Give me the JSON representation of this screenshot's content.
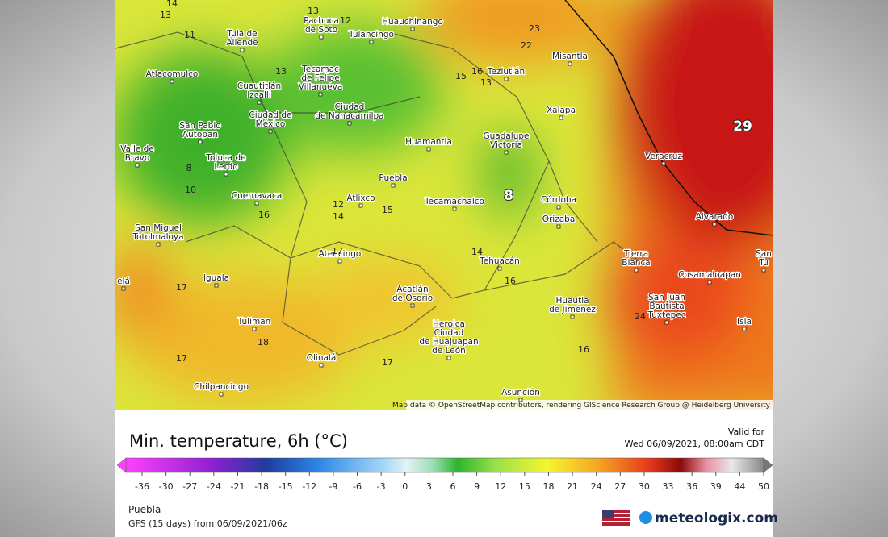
{
  "map": {
    "cities": [
      {
        "lines": [
          "Tula de",
          "Allende"
        ]
      },
      {
        "lines": [
          "Pachuca",
          "de Soto"
        ]
      },
      {
        "lines": [
          "Tulancingo"
        ]
      },
      {
        "lines": [
          "Huauchinango"
        ]
      },
      {
        "lines": [
          "Misantla"
        ]
      },
      {
        "lines": [
          "Atlacomulco"
        ]
      },
      {
        "lines": [
          "Tecamac",
          "de Felipe",
          "Villanueva"
        ]
      },
      {
        "lines": [
          "Cuautitlán",
          "Izcalli"
        ]
      },
      {
        "lines": [
          "Teziutlán"
        ]
      },
      {
        "lines": [
          "Ciudad",
          "de Nanacamilpa"
        ]
      },
      {
        "lines": [
          "Ciudad de",
          "México"
        ]
      },
      {
        "lines": [
          "Xalapa"
        ]
      },
      {
        "lines": [
          "San Pablo",
          "Autopan"
        ]
      },
      {
        "lines": [
          "Guadalupe",
          "Victoria"
        ]
      },
      {
        "lines": [
          "Huamantla"
        ]
      },
      {
        "lines": [
          "Veracruz"
        ]
      },
      {
        "lines": [
          "Valle de",
          "Bravo"
        ]
      },
      {
        "lines": [
          "Toluca de",
          "Lerdo"
        ]
      },
      {
        "lines": [
          "Puebla"
        ]
      },
      {
        "lines": [
          "Cuernavaca"
        ]
      },
      {
        "lines": [
          "Atlixco"
        ]
      },
      {
        "lines": [
          "Tecamachalco"
        ]
      },
      {
        "lines": [
          "Córdoba"
        ]
      },
      {
        "lines": [
          "Orizaba"
        ]
      },
      {
        "lines": [
          "Alvarado"
        ]
      },
      {
        "lines": [
          "San Miguel",
          "Totolmaloya"
        ]
      },
      {
        "lines": [
          "Atencingo"
        ]
      },
      {
        "lines": [
          "Tierra",
          "Blanca"
        ]
      },
      {
        "lines": [
          "Tehuacán"
        ]
      },
      {
        "lines": [
          "Cosamaloapan"
        ]
      },
      {
        "lines": [
          "Iguala"
        ]
      },
      {
        "lines": [
          "Acatlán",
          "de Osorio"
        ]
      },
      {
        "lines": [
          "San Juan",
          "Bautista",
          "Tuxtepec"
        ]
      },
      {
        "lines": [
          "Huautla",
          "de Jiménez"
        ]
      },
      {
        "lines": [
          "Isla"
        ]
      },
      {
        "lines": [
          "Tuliman"
        ]
      },
      {
        "lines": [
          "Heroica",
          "Ciudad",
          "de Huajuapan",
          "de León"
        ]
      },
      {
        "lines": [
          "Olinalá"
        ]
      },
      {
        "lines": [
          "Chilpancingo"
        ]
      },
      {
        "lines": [
          "Asunción"
        ]
      },
      {
        "lines": [
          "San",
          "Tu"
        ]
      },
      {
        "lines": [
          "elá"
        ]
      }
    ],
    "contour_labels": [
      14,
      13,
      11,
      13,
      12,
      23,
      22,
      15,
      16,
      13,
      13,
      29,
      8,
      8,
      10,
      12,
      14,
      15,
      16,
      17,
      14,
      16,
      17,
      18,
      17,
      17,
      16,
      24
    ],
    "attribution": "Map data © OpenStreetMap contributors, rendering GIScience Research Group @ Heidelberg University"
  },
  "legend": {
    "title": "Min. temperature, 6h (°C)",
    "valid_label": "Valid for",
    "valid_time": "Wed 06/09/2021, 08:00am CDT",
    "ticks": [
      -36,
      -30,
      -27,
      -24,
      -21,
      -18,
      -15,
      -12,
      -9,
      -6,
      -3,
      0,
      3,
      6,
      9,
      12,
      15,
      18,
      21,
      24,
      27,
      30,
      33,
      36,
      39,
      44,
      50
    ],
    "location": "Puebla",
    "model": "GFS (15 days) from 06/09/2021/06z",
    "brand": "meteologix.com"
  }
}
